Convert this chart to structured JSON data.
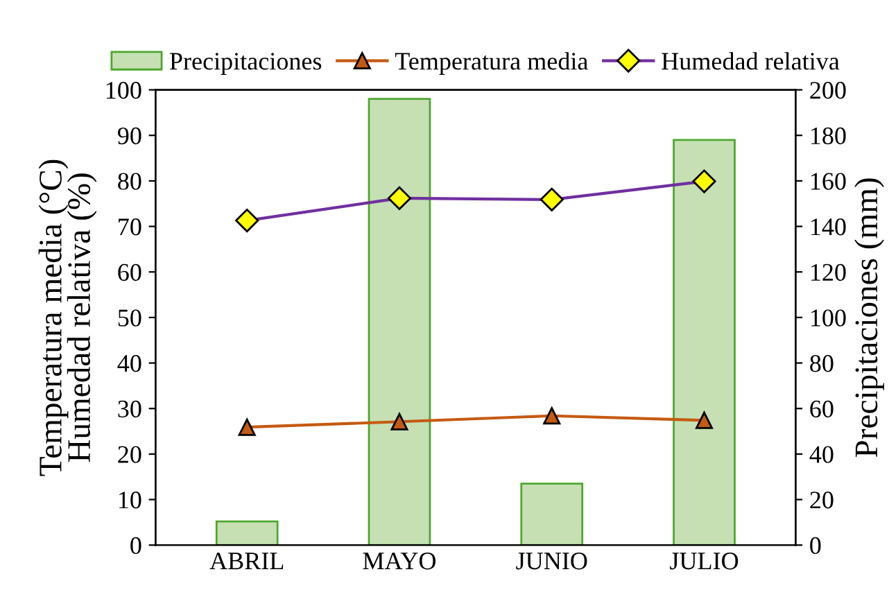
{
  "chart_data": {
    "type": "line",
    "categories": [
      "ABRIL",
      "MAYO",
      "JUNIO",
      "JULIO"
    ],
    "ylabel": "Temperatura media (°C)\nHumedad relativa (%)",
    "y2label": "Precipitaciones (mm)",
    "ylim": [
      0,
      100
    ],
    "yticks": [
      0,
      10,
      20,
      30,
      40,
      50,
      60,
      70,
      80,
      90,
      100
    ],
    "y2lim": [
      0,
      200
    ],
    "y2ticks": [
      0,
      20,
      40,
      60,
      80,
      100,
      120,
      140,
      160,
      180,
      200
    ],
    "series": [
      {
        "name": "Precipitaciones",
        "type": "bar",
        "axis": "y2",
        "color": "#c6e0b4",
        "values": [
          10.4,
          196,
          27,
          178
        ]
      },
      {
        "name": "Temperatura media",
        "marker": "triangle",
        "color": "#c55a11",
        "values": [
          25.9,
          27.1,
          28.4,
          27.4
        ]
      },
      {
        "name": "Humedad relativa",
        "marker": "diamond",
        "color": "#7030a0",
        "values": [
          71.3,
          76.2,
          75.9,
          79.9
        ]
      }
    ],
    "legend": "top",
    "grid": false
  }
}
